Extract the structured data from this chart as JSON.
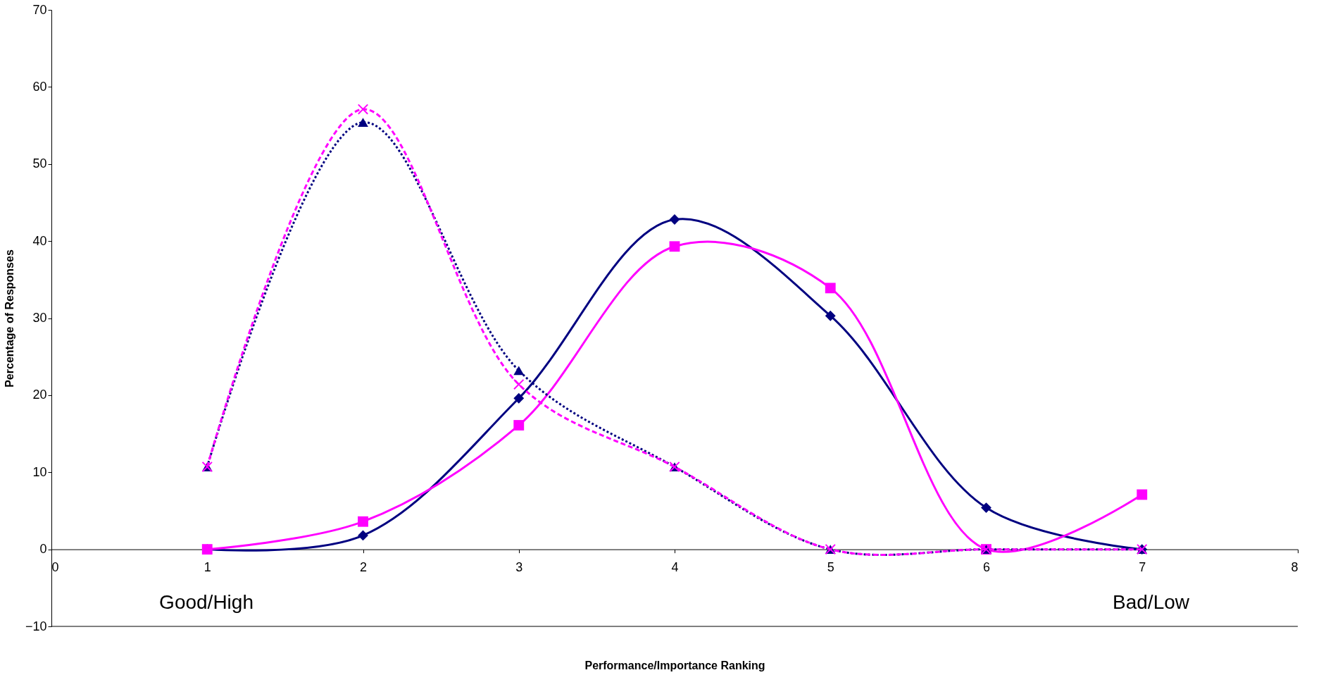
{
  "chart_data": {
    "type": "line",
    "xlabel": "Performance/Importance Ranking",
    "ylabel": "Percentage of Responses",
    "x": [
      1,
      2,
      3,
      4,
      5,
      6,
      7
    ],
    "series": [
      {
        "color": "#000080",
        "marker": "diamond",
        "line_style": "solid",
        "values": [
          0,
          1.8,
          19.6,
          42.8,
          30.3,
          5.4,
          0
        ]
      },
      {
        "color": "#ff00ff",
        "marker": "square",
        "line_style": "solid",
        "values": [
          0,
          3.6,
          16.1,
          39.3,
          33.9,
          0,
          7.1
        ]
      },
      {
        "color": "#000080",
        "marker": "triangle",
        "line_style": "dotted",
        "values": [
          10.7,
          55.4,
          23.2,
          10.7,
          0,
          0,
          0
        ]
      },
      {
        "color": "#ff00ff",
        "marker": "cross",
        "line_style": "dashed",
        "values": [
          10.7,
          57.1,
          21.4,
          10.7,
          0,
          0,
          0
        ]
      }
    ],
    "xlim": [
      0,
      8
    ],
    "xticks": [
      0,
      1,
      2,
      3,
      4,
      5,
      6,
      7,
      8
    ],
    "ylim": [
      -10,
      70
    ],
    "yticks": [
      -10,
      0,
      10,
      20,
      30,
      40,
      50,
      60,
      70
    ],
    "annotations": [
      "Good/High",
      "Bad/Low"
    ]
  }
}
